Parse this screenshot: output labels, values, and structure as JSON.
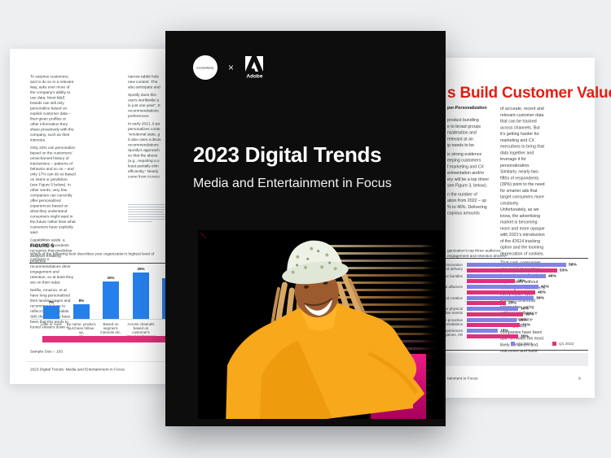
{
  "theme": {
    "accent_red": "#e32012",
    "bar_blue": "#2680eb",
    "bar_purple": "#8183e6",
    "bar_pink": "#e0327a",
    "cover_bg": "#0d0d0d",
    "photo_magenta": "#e6007e"
  },
  "cover": {
    "logo_left_text": "Econsultancy",
    "logo_separator": "×",
    "adobe_label": "Adobe",
    "title": "2023 Digital Trends",
    "subtitle": "Media and Entertainment in Focus"
  },
  "left_page": {
    "col1_paragraphs": [
      "To surprise customers, and to do so in a relevant way, asks ever more of the company's ability to use data. Most M&E brands can still only personalize based on explicit customer data – their given profiles or other information they share proactively with the company, such as their interests.",
      "Only 22% can personalize based on the customers' omnichannel history of interactions – patterns of behavior and so on – and only 17% can do so based on intent or prediction (see Figure 5 below). In other words, very few companies can currently offer personalized experiences based on what they understand consumers might want in the future rather than what customers have explicitly said.",
      "Capabilities aside, a quarter of respondents recognize that predictive analytics enabling proactive recommendations drive engagement and retention, so at least they are on their radar.",
      "Netflix, Amazon, et al. have long personalized their landing pages and recommendations to reflect browsing habits. Still, the concerns have been that this tends to funnel viewers down a"
    ],
    "col2_fragments": [
      "narrow rabbit hole",
      "new content. The",
      "also anticipate and",
      "",
      "Spotify does this",
      "users worldwide a",
      "in just one year\", S",
      "recommendations",
      "preferences.",
      "",
      "In early 2021, it pa",
      "personalizes conte",
      "\"emotional state, g",
      "It also uses a decis",
      "recommendations",
      "Spotify's approach",
      "so that the above",
      "(e.g., requiring a u",
      "least partially elim",
      "efficiently.\" Nearly",
      "come from AI-reco"
    ],
    "figure": {
      "label": "FIGURE 5",
      "caption": "Which of the following best describes your organization's highest level of customer e",
      "sample_size": "Sample Size – 103"
    },
    "footer": "2023 Digital Trends: Media and Entertainment in Focus"
  },
  "right_page": {
    "title_fragment": "s Build Customer Value",
    "subhead_fragment": "per-Personalization",
    "col1_fragments": [
      "product bundling",
      "e to broad groups",
      "nsideration and",
      "relevant at an",
      "ip needs to be",
      "",
      "is strong evidence",
      "eeping customers",
      "f marketing and CX",
      "erimentation and/or",
      "ery will be a top driver",
      "see Figure 3, below).",
      "",
      "n the number of",
      "ation from 2022 – up",
      "% to 46%. Delivering",
      "copious amounts"
    ],
    "col2_paragraphs": [
      "of accurate, recent and relevant customer data that can be tracked across channels. But it's getting harder for marketing and CX executives to bring that data together and leverage it for personalization. Similarly, nearly two-fifths of respondents (39%) point to the need for smarter ads that target consumers more creatively. Unfortunately, as we know, the advertising market is becoming more and more opaque with 2021's introduction of the iOS14 tracking option and the looming deprecation of cookies.",
      "That said, companies can excel at creating hyper-personalized experiences without knowing the customer's every move. With enough contextual information, using artificial intelligence (AI) and machine learning (ML), companies have been able to model the most likely behaviors and outcomes and build personalized journeys on that basis."
    ],
    "figure": {
      "caption_fragment": "ganization's top three audience engagement and retention drivers?"
    },
    "footer_fragment": "tainment in Focus",
    "page_number": "9"
  },
  "chart_data": [
    {
      "type": "bar",
      "title": "FIGURE 5 — Which of the following best describes your organization's highest level of customer e…",
      "categories": [
        "Little or none",
        "By name, product,\npurchase follow-up,\netc.",
        "Based on segment,\ninterests etc.",
        "Across channels\nbased on customer's\nstated preferences",
        "Bas\ncusto\nof int"
      ],
      "values": [
        7,
        8,
        20,
        25,
        22
      ],
      "value_labels": [
        "7%",
        "8%",
        "20%",
        "25%",
        "22%"
      ],
      "ylim": [
        0,
        28
      ],
      "bar_color": "#2680eb",
      "xlabel": "",
      "ylabel": "",
      "grid": false,
      "note": "Sample Size – 103"
    },
    {
      "type": "bar",
      "orientation": "horizontal",
      "title": "…ganization's top three audience engagement and retention drivers?",
      "categories": [
        "d/or innovation\nnt and delivery",
        "als or bundles",
        "s and alliances",
        "ff and creative",
        "ew or physical\ng. live events",
        "able proactive\nmendations",
        "e experiences\nps, games, AR"
      ],
      "series": [
        {
          "name": "Q1 2023",
          "color": "#8183e6",
          "values": [
            58,
            46,
            42,
            39,
            30,
            29,
            18
          ]
        },
        {
          "name": "Q1 2022",
          "color": "#e0327a",
          "values": [
            53,
            28,
            40,
            23,
            33,
            31,
            30
          ]
        }
      ],
      "xlim": [
        0,
        60
      ],
      "legend_position": "bottom",
      "grid": false
    }
  ]
}
